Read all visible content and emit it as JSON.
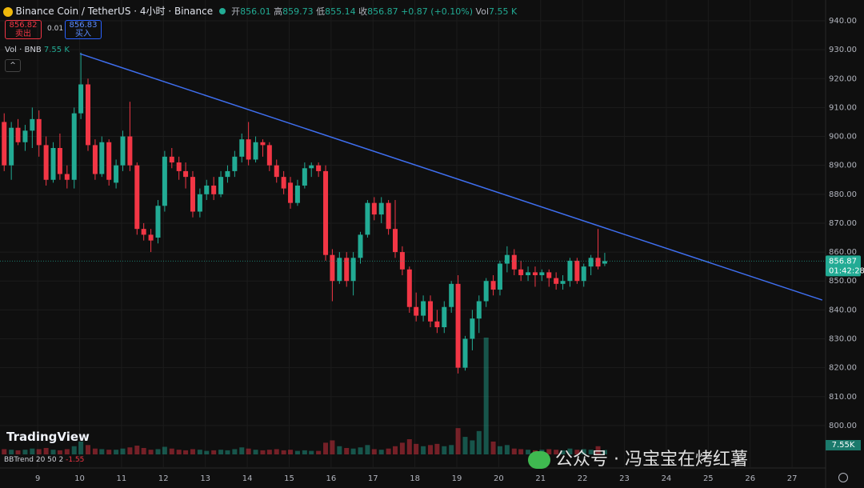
{
  "header": {
    "symbol": "Binance Coin / TetherUS · 4小时 · Binance",
    "open_label": "开",
    "high_label": "高",
    "low_label": "低",
    "close_label": "收",
    "change": "+0.87 (+0.10%)",
    "vol_label": "Vol",
    "vol_value": "7.55 K",
    "sell_price": "856.82",
    "sell_label": "卖出",
    "spread": "0.01",
    "buy_price": "856.83",
    "buy_label": "买入",
    "vol_pane": "Vol · BNB",
    "vol_pane_value": "7.55 K",
    "logo": "TradingView",
    "indicator": "BBTrend 20 50 2",
    "indicator_value": "-1.55",
    "countdown": "01:42:28",
    "vol_axis_label": "7.55K",
    "watermark": "公众号 · 冯宝宝在烤红薯"
  },
  "chart_data": {
    "type": "candlestick",
    "up_color": "#22ab94",
    "down_color": "#f23645",
    "grid": true,
    "x": [
      8.2,
      8.37,
      8.53,
      8.7,
      8.87,
      9.03,
      9.2,
      9.37,
      9.53,
      9.7,
      9.87,
      10.03,
      10.2,
      10.37,
      10.53,
      10.7,
      10.87,
      11.03,
      11.2,
      11.37,
      11.53,
      11.7,
      11.87,
      12.03,
      12.2,
      12.37,
      12.53,
      12.7,
      12.87,
      13.03,
      13.2,
      13.37,
      13.53,
      13.7,
      13.87,
      14.03,
      14.2,
      14.37,
      14.53,
      14.7,
      14.87,
      15.03,
      15.2,
      15.37,
      15.53,
      15.7,
      15.87,
      16.03,
      16.2,
      16.37,
      16.53,
      16.7,
      16.87,
      17.03,
      17.2,
      17.37,
      17.53,
      17.7,
      17.87,
      18.03,
      18.2,
      18.37,
      18.53,
      18.7,
      18.87,
      19.03,
      19.2,
      19.37,
      19.53,
      19.7,
      19.87,
      20.03,
      20.2,
      20.37,
      20.53,
      20.7,
      20.87,
      21.03,
      21.2,
      21.37,
      21.53,
      21.7,
      21.87,
      22.03,
      22.2,
      22.37,
      22.53
    ],
    "open": [
      905,
      890,
      903,
      898,
      902,
      906,
      897,
      885,
      896,
      887,
      885,
      908,
      918,
      897,
      887,
      898,
      884,
      890,
      900,
      890,
      868,
      866,
      865,
      876,
      893,
      891,
      888,
      886,
      874,
      880,
      883,
      880,
      886,
      888,
      893,
      899,
      892,
      898,
      897,
      890,
      886,
      884,
      877,
      883,
      889,
      890,
      888,
      859,
      850,
      858,
      850,
      858,
      866,
      877,
      873,
      877,
      868,
      860,
      854,
      841,
      838,
      843,
      836,
      834,
      841,
      849,
      820,
      830,
      837,
      843,
      850,
      847,
      856,
      859,
      854,
      852,
      853,
      852,
      853,
      851,
      849,
      850,
      857,
      850,
      855,
      858,
      856.01
    ],
    "high": [
      908,
      905,
      906,
      904,
      910,
      909,
      900,
      898,
      901,
      890,
      910,
      929,
      920,
      899,
      900,
      899,
      892,
      902,
      912,
      891,
      870,
      868,
      878,
      895,
      896,
      893,
      891,
      888,
      882,
      885,
      886,
      888,
      890,
      895,
      901,
      905,
      900,
      899,
      898,
      892,
      888,
      886,
      885,
      891,
      891,
      891,
      890,
      861,
      860,
      860,
      860,
      867,
      878,
      879,
      879,
      878,
      878,
      862,
      855,
      846,
      845,
      845,
      840,
      843,
      850,
      852,
      831,
      840,
      845,
      851,
      852,
      857,
      862,
      861,
      857,
      855,
      855,
      854,
      854,
      853,
      852,
      858,
      858,
      856,
      859,
      868,
      859.73
    ],
    "low": [
      888,
      885,
      897,
      895,
      896,
      893,
      883,
      884,
      885,
      882,
      882,
      906,
      895,
      885,
      886,
      883,
      882,
      888,
      888,
      866,
      864,
      860,
      863,
      874,
      889,
      885,
      882,
      872,
      872,
      878,
      878,
      879,
      884,
      886,
      891,
      890,
      891,
      893,
      888,
      884,
      880,
      875,
      876,
      882,
      886,
      886,
      857,
      843,
      849,
      848,
      845,
      856,
      865,
      871,
      870,
      866,
      858,
      852,
      839,
      836,
      836,
      834,
      832,
      832,
      839,
      818,
      819,
      826,
      832,
      841,
      845,
      845,
      853,
      852,
      850,
      850,
      848,
      850,
      848,
      847,
      847,
      848,
      849,
      848,
      852,
      854,
      855.14
    ],
    "close": [
      890,
      903,
      898,
      902,
      906,
      897,
      885,
      896,
      887,
      885,
      908,
      918,
      897,
      887,
      898,
      885,
      890,
      900,
      890,
      868,
      866,
      864,
      876,
      893,
      891,
      888,
      886,
      874,
      880,
      883,
      880,
      886,
      888,
      893,
      899,
      892,
      898,
      897,
      890,
      886,
      882,
      877,
      883,
      889,
      890,
      888,
      859,
      850,
      858,
      850,
      858,
      866,
      877,
      873,
      877,
      868,
      860,
      854,
      841,
      838,
      843,
      836,
      834,
      841,
      849,
      820,
      830,
      837,
      843,
      850,
      847,
      856,
      859,
      854,
      852,
      853,
      852,
      853,
      851,
      849,
      850,
      857,
      850,
      855,
      858,
      855,
      856.87
    ],
    "volume": [
      9,
      8,
      7,
      8,
      10,
      9,
      11,
      8,
      7,
      9,
      14,
      22,
      16,
      10,
      9,
      8,
      8,
      10,
      12,
      15,
      11,
      8,
      9,
      13,
      10,
      8,
      7,
      9,
      8,
      6,
      7,
      8,
      7,
      9,
      12,
      10,
      8,
      7,
      8,
      9,
      7,
      8,
      6,
      7,
      6,
      6,
      20,
      24,
      14,
      11,
      10,
      12,
      16,
      9,
      8,
      10,
      14,
      20,
      26,
      18,
      14,
      16,
      18,
      14,
      16,
      45,
      30,
      24,
      40,
      200,
      22,
      14,
      16,
      10,
      9,
      8,
      7,
      8,
      9,
      8,
      7,
      10,
      8,
      9,
      8,
      14,
      7.55
    ],
    "xlim": [
      8.1,
      27.8
    ],
    "xticks": [
      9,
      10,
      11,
      12,
      13,
      14,
      15,
      16,
      17,
      18,
      19,
      20,
      21,
      22,
      23,
      24,
      25,
      26,
      27
    ],
    "ylim": [
      785.3,
      947.2
    ],
    "yticks": [
      {
        "value": 800,
        "label": "800.00"
      },
      {
        "value": 810,
        "label": "810.00"
      },
      {
        "value": 820,
        "label": "820.00"
      },
      {
        "value": 830,
        "label": "830.00"
      },
      {
        "value": 840,
        "label": "840.00"
      },
      {
        "value": 850,
        "label": "850.00"
      },
      {
        "value": 860,
        "label": "860.00"
      },
      {
        "value": 870,
        "label": "870.00"
      },
      {
        "value": 880,
        "label": "880.00"
      },
      {
        "value": 890,
        "label": "890.00"
      },
      {
        "value": 900,
        "label": "900.00"
      },
      {
        "value": 910,
        "label": "910.00"
      },
      {
        "value": 920,
        "label": "920.00"
      },
      {
        "value": 930,
        "label": "930.00"
      },
      {
        "value": 940,
        "label": "940.00"
      }
    ],
    "trendline": {
      "x": [
        10.01,
        27.72
      ],
      "y": [
        928.6,
        843.4
      ],
      "color": "#3f6ff0"
    }
  }
}
